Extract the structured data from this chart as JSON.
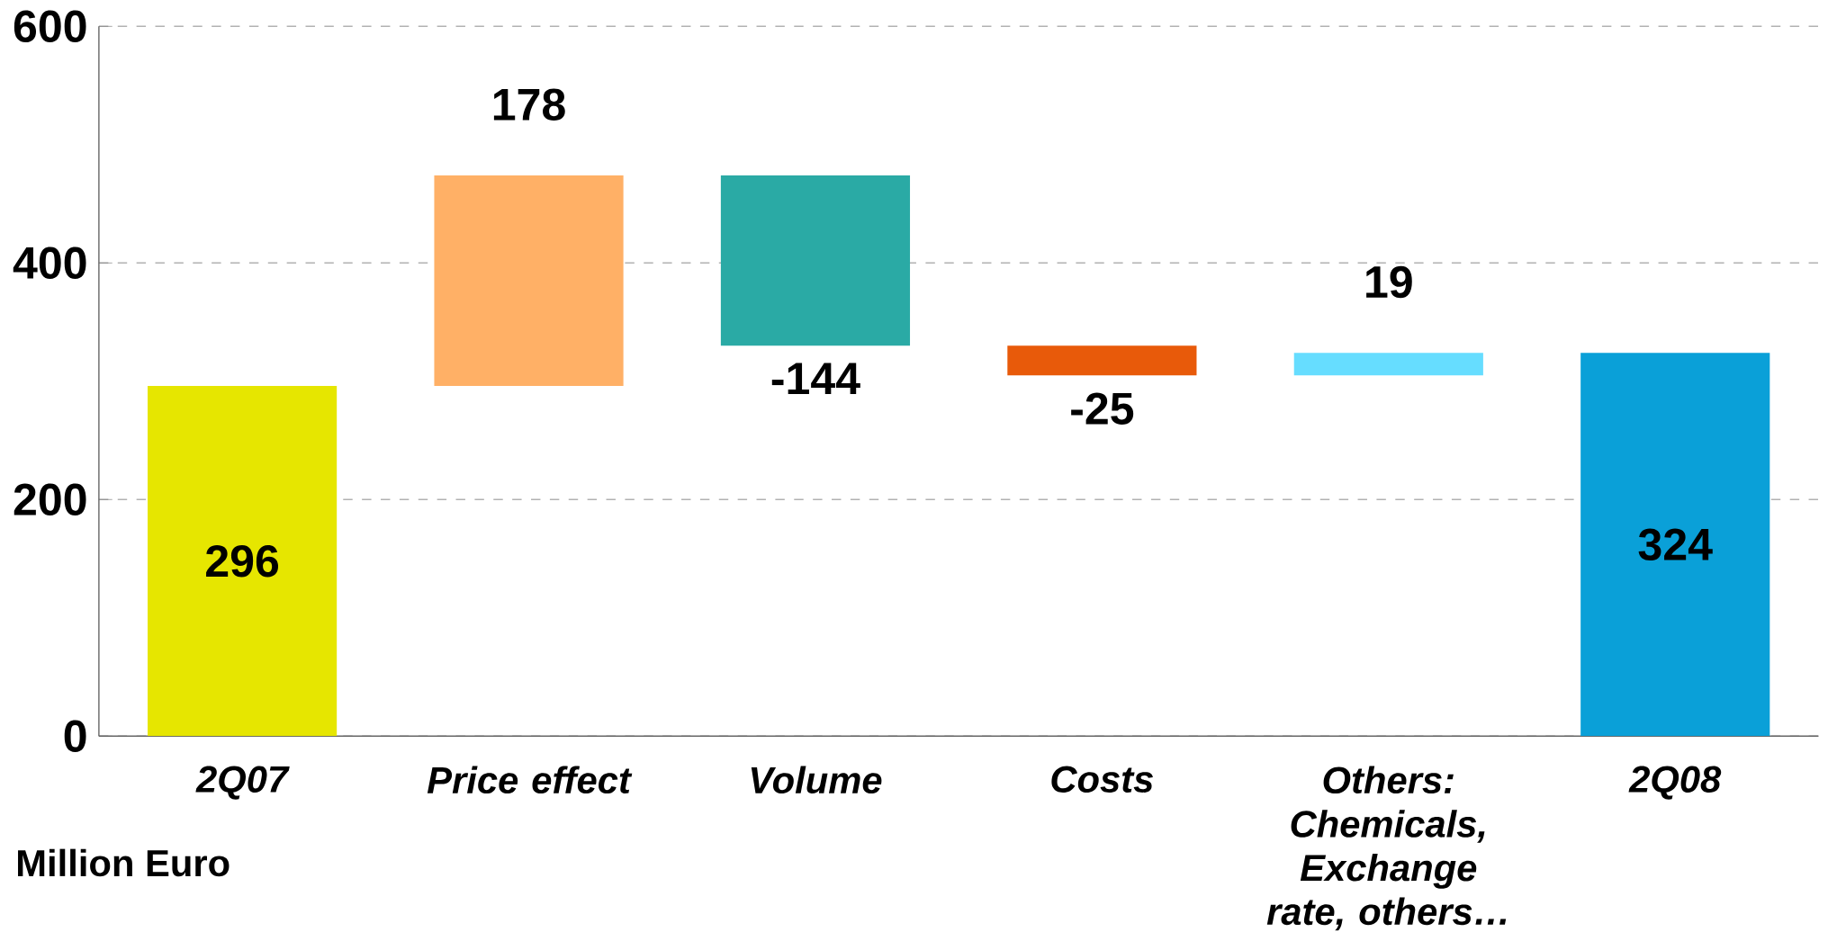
{
  "chart_data": {
    "type": "bar",
    "categories": [
      "2Q07",
      "Price effect",
      "Volume",
      "Costs",
      "Others: Chemicals, Exchange rate, others…",
      "2Q08"
    ],
    "values": [
      296,
      178,
      -144,
      -25,
      19,
      324
    ],
    "base": [
      0,
      296,
      474,
      330,
      305,
      0
    ],
    "colors": [
      "#e6e600",
      "#ffb066",
      "#2aaaa5",
      "#e85a0a",
      "#66ddff",
      "#0aa0d8"
    ],
    "ylim": [
      0,
      600
    ],
    "yticks": [
      0,
      200,
      400,
      600
    ],
    "grid": "y",
    "data_labels": true,
    "annotations": [
      "Million Euro"
    ]
  }
}
